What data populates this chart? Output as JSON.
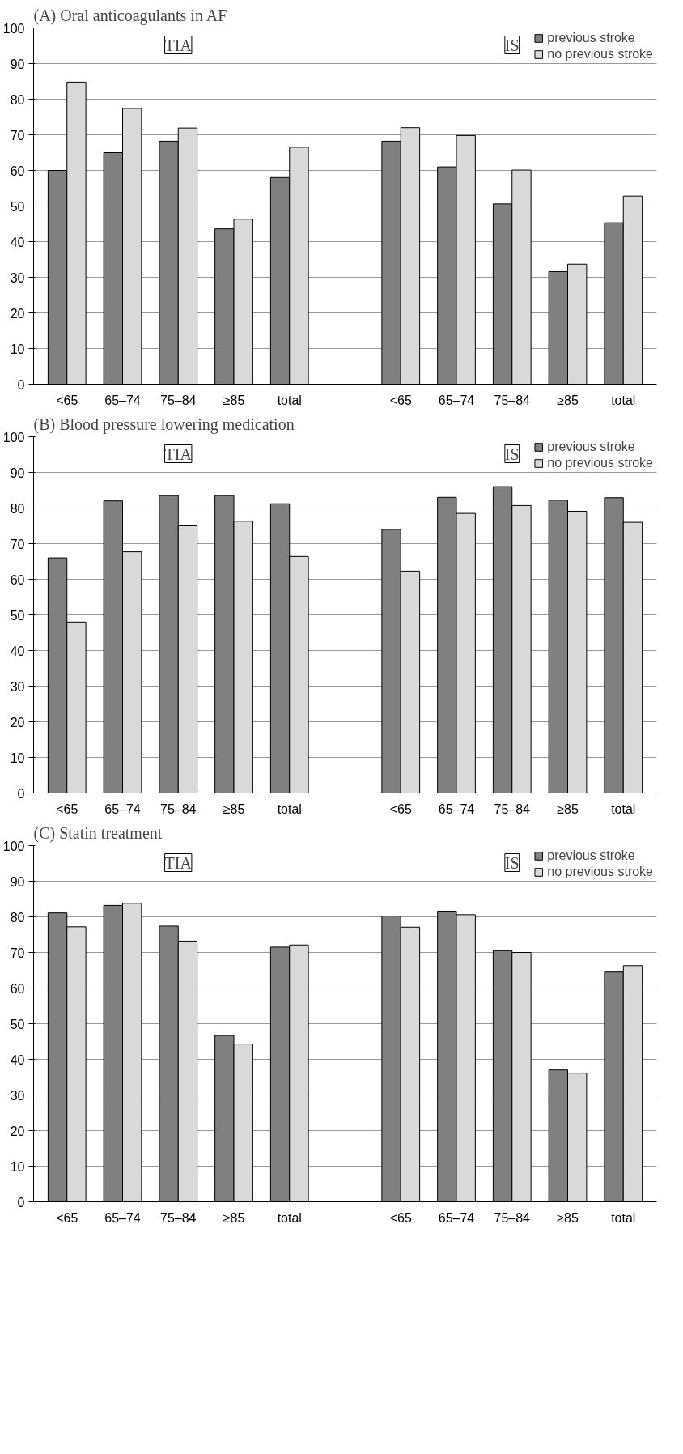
{
  "chart_data": [
    {
      "type": "bar",
      "title": "(A) Oral anticoagulants in AF",
      "categories": [
        "<65",
        "65–74",
        "75–84",
        "≥85",
        "total",
        null,
        "<65",
        "65–74",
        "75–84",
        "≥85",
        "total"
      ],
      "series": [
        {
          "name": "previous stroke",
          "color": "#808080",
          "values": [
            60,
            65,
            68.2,
            43.6,
            58,
            null,
            68.2,
            61,
            50.6,
            31.6,
            45.3
          ]
        },
        {
          "name": "no previous stroke",
          "color": "#d9d9d9",
          "values": [
            84.8,
            77.4,
            71.9,
            46.3,
            66.5,
            null,
            72,
            69.8,
            60.1,
            33.7,
            52.8
          ]
        }
      ],
      "annotations": [
        "TIA",
        "IS"
      ],
      "ylim": [
        0,
        100
      ],
      "yticks": [
        0,
        10,
        20,
        30,
        40,
        50,
        60,
        70,
        80,
        90,
        100
      ],
      "grid": "y",
      "legend": "top right"
    },
    {
      "type": "bar",
      "title": "(B) Blood pressure lowering medication",
      "categories": [
        "<65",
        "65–74",
        "75–84",
        "≥85",
        "total",
        null,
        "<65",
        "65–74",
        "75–84",
        "≥85",
        "total"
      ],
      "series": [
        {
          "name": "previous stroke",
          "color": "#808080",
          "values": [
            66,
            82,
            83.5,
            83.5,
            81.2,
            null,
            74,
            83,
            86,
            82.2,
            82.9
          ]
        },
        {
          "name": "no previous stroke",
          "color": "#d9d9d9",
          "values": [
            48,
            67.7,
            75,
            76.3,
            66.4,
            null,
            62.3,
            78.5,
            80.7,
            79.1,
            76
          ]
        }
      ],
      "annotations": [
        "TIA",
        "IS"
      ],
      "ylim": [
        0,
        100
      ],
      "yticks": [
        0,
        10,
        20,
        30,
        40,
        50,
        60,
        70,
        80,
        90,
        100
      ],
      "grid": "y",
      "legend": "top right"
    },
    {
      "type": "bar",
      "title": "(C) Statin treatment",
      "categories": [
        "<65",
        "65–74",
        "75–84",
        "≥85",
        "total",
        null,
        "<65",
        "65–74",
        "75–84",
        "≥85",
        "total"
      ],
      "series": [
        {
          "name": "previous stroke",
          "color": "#808080",
          "values": [
            81.1,
            83.2,
            77.4,
            46.7,
            71.5,
            null,
            80.2,
            81.6,
            70.5,
            37,
            64.5
          ]
        },
        {
          "name": "no previous stroke",
          "color": "#d9d9d9",
          "values": [
            77.2,
            83.8,
            73.2,
            44.3,
            72.1,
            null,
            77.1,
            80.6,
            70,
            36.1,
            66.3
          ]
        }
      ],
      "annotations": [
        "TIA",
        "IS"
      ],
      "ylim": [
        0,
        100
      ],
      "yticks": [
        0,
        10,
        20,
        30,
        40,
        50,
        60,
        70,
        80,
        90,
        100
      ],
      "grid": "y",
      "legend": "top right"
    }
  ]
}
